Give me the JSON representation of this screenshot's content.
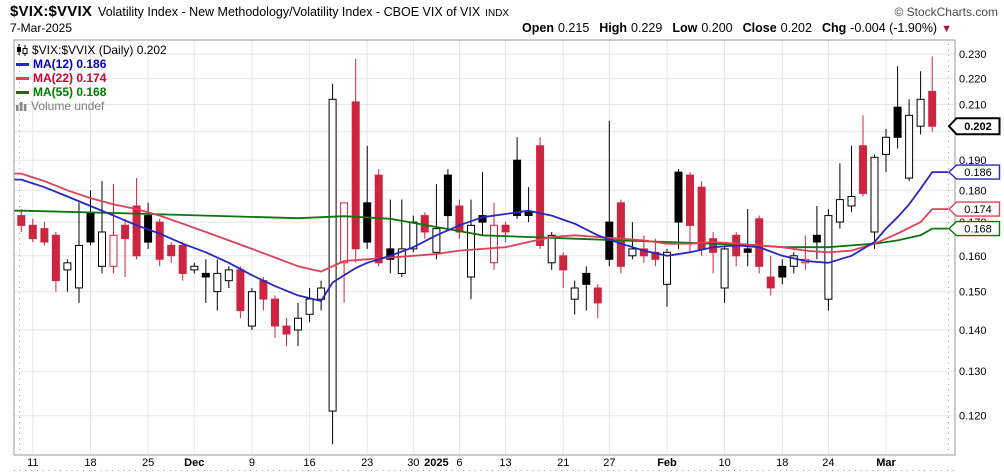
{
  "header": {
    "symbol": "$VIX:$VVIX",
    "description": "Volatility Index - New Methodology/Volatility Index - CBOE VIX of VIX",
    "exchange": "INDX",
    "copyright": "© StockCharts.com",
    "date": "7-Mar-2025",
    "quote": {
      "open_label": "Open",
      "open_value": "0.215",
      "high_label": "High",
      "high_value": "0.229",
      "low_label": "Low",
      "low_value": "0.200",
      "close_label": "Close",
      "close_value": "0.202",
      "chg_label": "Chg",
      "chg_value": "-0.004 (-1.90%)",
      "down_arrow": "▼"
    }
  },
  "legend": {
    "main": "$VIX:$VVIX (Daily) 0.202",
    "ma12": "MA(12) 0.186",
    "ma22": "MA(22) 0.174",
    "ma55": "MA(55) 0.168",
    "volume": "Volume undef"
  },
  "colors": {
    "candle_red": "#cd2440",
    "candle_black": "#000000",
    "ma12_blue": "#2727c3",
    "ma22_red": "#e04058",
    "ma55_green": "#0a750a",
    "grid": "#e5e5e5",
    "plot_border": "#999999",
    "axis_text": "#000000",
    "legend_ma12_text": "#0000cc",
    "legend_ma22_text": "#cc0033",
    "legend_ma55_text": "#007a00",
    "volume_text": "#7a7a7a",
    "copyright_text": "#4a4a4a",
    "chg_arrow": "#aa1b2d",
    "background": "#ffffff"
  },
  "chart_data": {
    "type": "candlestick",
    "title": "$VIX:$VVIX (Daily)",
    "period": "Daily",
    "last_close": 0.202,
    "log_scale": true,
    "ylim": [
      0.112,
      0.236
    ],
    "grid": true,
    "y_gridlines": [
      0.12,
      0.13,
      0.14,
      0.15,
      0.16,
      0.17,
      0.18,
      0.19,
      0.2,
      0.21,
      0.22,
      0.23
    ],
    "y_axis_labels": [
      {
        "text": "0.230",
        "v": 0.23
      },
      {
        "text": "0.220",
        "v": 0.22
      },
      {
        "text": "0.210",
        "v": 0.21
      },
      {
        "text": "0.190",
        "v": 0.19
      },
      {
        "text": "0.180",
        "v": 0.18
      },
      {
        "text": "0.170",
        "v": 0.17
      },
      {
        "text": "0.160",
        "v": 0.16
      },
      {
        "text": "0.150",
        "v": 0.15
      },
      {
        "text": "0.140",
        "v": 0.14
      },
      {
        "text": "0.130",
        "v": 0.13
      },
      {
        "text": "0.120",
        "v": 0.12
      }
    ],
    "price_bubbles": [
      {
        "text": "0.202",
        "v": 0.202,
        "color": "#000000",
        "bold": true
      },
      {
        "text": "0.186",
        "v": 0.186,
        "color": "#2727c3",
        "bold": false
      },
      {
        "text": "0.174",
        "v": 0.174,
        "color": "#e04058",
        "bold": false
      },
      {
        "text": "0.168",
        "v": 0.168,
        "color": "#0a750a",
        "bold": false
      }
    ],
    "x_ticks": [
      {
        "label": "11",
        "i": 1,
        "bold": false,
        "grid": true
      },
      {
        "label": "18",
        "i": 6,
        "bold": false,
        "grid": true
      },
      {
        "label": "25",
        "i": 11,
        "bold": false,
        "grid": true
      },
      {
        "label": "Dec",
        "i": 15,
        "bold": true,
        "grid": true
      },
      {
        "label": "9",
        "i": 20,
        "bold": false,
        "grid": true
      },
      {
        "label": "16",
        "i": 25,
        "bold": false,
        "grid": true
      },
      {
        "label": "23",
        "i": 30,
        "bold": false,
        "grid": true
      },
      {
        "label": "30",
        "i": 34,
        "bold": false,
        "grid": true
      },
      {
        "label": "2025",
        "i": 36,
        "bold": true,
        "grid": false
      },
      {
        "label": "6",
        "i": 38,
        "bold": false,
        "grid": true
      },
      {
        "label": "13",
        "i": 42,
        "bold": false,
        "grid": true
      },
      {
        "label": "21",
        "i": 47,
        "bold": false,
        "grid": true
      },
      {
        "label": "27",
        "i": 51,
        "bold": false,
        "grid": true
      },
      {
        "label": "Feb",
        "i": 56,
        "bold": true,
        "grid": true
      },
      {
        "label": "10",
        "i": 61,
        "bold": false,
        "grid": true
      },
      {
        "label": "18",
        "i": 66,
        "bold": false,
        "grid": true
      },
      {
        "label": "24",
        "i": 70,
        "bold": false,
        "grid": true
      },
      {
        "label": "Mar",
        "i": 75,
        "bold": true,
        "grid": true
      }
    ],
    "candle_styles": {
      "r": "red-filled",
      "b": "black-filled",
      "w": "white-hollow",
      "rh": "red-hollow"
    },
    "dates": [
      "Nov 8",
      "Nov 11",
      "Nov 12",
      "Nov 13",
      "Nov 14",
      "Nov 15",
      "Nov 18",
      "Nov 19",
      "Nov 20",
      "Nov 21",
      "Nov 22",
      "Nov 25",
      "Nov 26",
      "Nov 27",
      "Nov 29",
      "Dec 2",
      "Dec 3",
      "Dec 4",
      "Dec 5",
      "Dec 6",
      "Dec 9",
      "Dec 10",
      "Dec 11",
      "Dec 12",
      "Dec 13",
      "Dec 16",
      "Dec 17",
      "Dec 18",
      "Dec 19",
      "Dec 20",
      "Dec 23",
      "Dec 24",
      "Dec 26",
      "Dec 27",
      "Dec 30",
      "Dec 31",
      "Jan 2",
      "Jan 3",
      "Jan 6",
      "Jan 7",
      "Jan 8",
      "Jan 10",
      "Jan 13",
      "Jan 14",
      "Jan 15",
      "Jan 16",
      "Jan 17",
      "Jan 21",
      "Jan 22",
      "Jan 23",
      "Jan 24",
      "Jan 27",
      "Jan 28",
      "Jan 29",
      "Jan 30",
      "Jan 31",
      "Feb 3",
      "Feb 4",
      "Feb 5",
      "Feb 6",
      "Feb 7",
      "Feb 10",
      "Feb 11",
      "Feb 12",
      "Feb 13",
      "Feb 14",
      "Feb 18",
      "Feb 19",
      "Feb 20",
      "Feb 21",
      "Feb 24",
      "Feb 25",
      "Feb 26",
      "Feb 27",
      "Feb 28",
      "Mar 3",
      "Mar 4",
      "Mar 5",
      "Mar 6",
      "Mar 7"
    ],
    "candles": [
      [
        0.172,
        0.174,
        0.167,
        0.169,
        "r"
      ],
      [
        0.169,
        0.171,
        0.164,
        0.165,
        "r"
      ],
      [
        0.168,
        0.17,
        0.163,
        0.164,
        "r"
      ],
      [
        0.166,
        0.167,
        0.15,
        0.153,
        "r"
      ],
      [
        0.156,
        0.159,
        0.15,
        0.158,
        "w"
      ],
      [
        0.151,
        0.176,
        0.147,
        0.163,
        "w"
      ],
      [
        0.173,
        0.18,
        0.163,
        0.164,
        "b"
      ],
      [
        0.157,
        0.183,
        0.155,
        0.167,
        "w"
      ],
      [
        0.157,
        0.182,
        0.155,
        0.166,
        "rh"
      ],
      [
        0.169,
        0.171,
        0.154,
        0.165,
        "r"
      ],
      [
        0.175,
        0.184,
        0.159,
        0.16,
        "r"
      ],
      [
        0.172,
        0.176,
        0.162,
        0.164,
        "b"
      ],
      [
        0.17,
        0.171,
        0.157,
        0.159,
        "r"
      ],
      [
        0.163,
        0.164,
        0.158,
        0.16,
        "r"
      ],
      [
        0.163,
        0.164,
        0.153,
        0.155,
        "r"
      ],
      [
        0.156,
        0.158,
        0.155,
        0.157,
        "w"
      ],
      [
        0.155,
        0.159,
        0.147,
        0.154,
        "b"
      ],
      [
        0.15,
        0.159,
        0.145,
        0.155,
        "w"
      ],
      [
        0.153,
        0.157,
        0.151,
        0.156,
        "w"
      ],
      [
        0.156,
        0.157,
        0.143,
        0.145,
        "r"
      ],
      [
        0.141,
        0.151,
        0.14,
        0.15,
        "w"
      ],
      [
        0.153,
        0.154,
        0.145,
        0.148,
        "r"
      ],
      [
        0.148,
        0.149,
        0.138,
        0.141,
        "r"
      ],
      [
        0.141,
        0.143,
        0.136,
        0.139,
        "r"
      ],
      [
        0.14,
        0.147,
        0.136,
        0.143,
        "w"
      ],
      [
        0.144,
        0.151,
        0.142,
        0.148,
        "w"
      ],
      [
        0.148,
        0.153,
        0.145,
        0.151,
        "w"
      ],
      [
        0.121,
        0.218,
        0.114,
        0.212,
        "w"
      ],
      [
        0.158,
        0.176,
        0.147,
        0.176,
        "rh"
      ],
      [
        0.211,
        0.228,
        0.158,
        0.162,
        "r"
      ],
      [
        0.176,
        0.195,
        0.162,
        0.164,
        "b"
      ],
      [
        0.185,
        0.187,
        0.157,
        0.158,
        "r"
      ],
      [
        0.162,
        0.177,
        0.155,
        0.159,
        "b"
      ],
      [
        0.155,
        0.177,
        0.154,
        0.162,
        "w"
      ],
      [
        0.162,
        0.172,
        0.161,
        0.17,
        "w"
      ],
      [
        0.172,
        0.173,
        0.165,
        0.167,
        "r"
      ],
      [
        0.161,
        0.182,
        0.159,
        0.168,
        "w"
      ],
      [
        0.185,
        0.187,
        0.168,
        0.172,
        "b"
      ],
      [
        0.175,
        0.177,
        0.165,
        0.167,
        "r"
      ],
      [
        0.154,
        0.177,
        0.148,
        0.169,
        "w"
      ],
      [
        0.172,
        0.186,
        0.166,
        0.17,
        "b"
      ],
      [
        0.158,
        0.176,
        0.156,
        0.169,
        "rh"
      ],
      [
        0.169,
        0.17,
        0.164,
        0.167,
        "r"
      ],
      [
        0.19,
        0.198,
        0.171,
        0.172,
        "b"
      ],
      [
        0.173,
        0.181,
        0.17,
        0.172,
        "b"
      ],
      [
        0.195,
        0.198,
        0.162,
        0.163,
        "r"
      ],
      [
        0.158,
        0.167,
        0.156,
        0.166,
        "w"
      ],
      [
        0.16,
        0.161,
        0.151,
        0.156,
        "r"
      ],
      [
        0.148,
        0.153,
        0.144,
        0.151,
        "w"
      ],
      [
        0.155,
        0.157,
        0.145,
        0.152,
        "b"
      ],
      [
        0.151,
        0.152,
        0.143,
        0.147,
        "r"
      ],
      [
        0.17,
        0.204,
        0.157,
        0.159,
        "b"
      ],
      [
        0.176,
        0.177,
        0.155,
        0.157,
        "r"
      ],
      [
        0.16,
        0.17,
        0.159,
        0.162,
        "w"
      ],
      [
        0.162,
        0.166,
        0.158,
        0.16,
        "r"
      ],
      [
        0.161,
        0.165,
        0.157,
        0.159,
        "r"
      ],
      [
        0.152,
        0.162,
        0.146,
        0.161,
        "w"
      ],
      [
        0.186,
        0.187,
        0.162,
        0.17,
        "b"
      ],
      [
        0.185,
        0.186,
        0.161,
        0.169,
        "r"
      ],
      [
        0.181,
        0.183,
        0.16,
        0.162,
        "r"
      ],
      [
        0.165,
        0.167,
        0.155,
        0.161,
        "r"
      ],
      [
        0.151,
        0.163,
        0.147,
        0.162,
        "w"
      ],
      [
        0.166,
        0.167,
        0.157,
        0.16,
        "r"
      ],
      [
        0.162,
        0.174,
        0.157,
        0.161,
        "b"
      ],
      [
        0.171,
        0.172,
        0.155,
        0.157,
        "r"
      ],
      [
        0.154,
        0.16,
        0.149,
        0.151,
        "r"
      ],
      [
        0.157,
        0.159,
        0.152,
        0.154,
        "b"
      ],
      [
        0.157,
        0.161,
        0.155,
        0.16,
        "w"
      ],
      [
        0.158,
        0.166,
        0.156,
        0.159,
        "rh"
      ],
      [
        0.166,
        0.175,
        0.159,
        0.164,
        "b"
      ],
      [
        0.148,
        0.174,
        0.145,
        0.172,
        "w"
      ],
      [
        0.17,
        0.189,
        0.168,
        0.177,
        "w"
      ],
      [
        0.175,
        0.195,
        0.173,
        0.178,
        "w"
      ],
      [
        0.195,
        0.206,
        0.178,
        0.179,
        "r"
      ],
      [
        0.167,
        0.192,
        0.162,
        0.191,
        "w"
      ],
      [
        0.192,
        0.201,
        0.186,
        0.198,
        "w"
      ],
      [
        0.209,
        0.225,
        0.194,
        0.198,
        "b"
      ],
      [
        0.184,
        0.212,
        0.183,
        0.206,
        "w"
      ],
      [
        0.202,
        0.223,
        0.199,
        0.212,
        "w"
      ],
      [
        0.215,
        0.229,
        0.2,
        0.202,
        "r"
      ]
    ],
    "ma": [
      {
        "name": "MA(12)",
        "period": 12,
        "color": "#2727c3",
        "last": 0.186,
        "points": [
          [
            0,
            0.1835
          ],
          [
            2,
            0.181
          ],
          [
            4,
            0.178
          ],
          [
            6,
            0.175
          ],
          [
            8,
            0.172
          ],
          [
            10,
            0.169
          ],
          [
            12,
            0.1665
          ],
          [
            14,
            0.1635
          ],
          [
            16,
            0.161
          ],
          [
            18,
            0.158
          ],
          [
            20,
            0.1545
          ],
          [
            22,
            0.1515
          ],
          [
            24,
            0.149
          ],
          [
            26,
            0.1475
          ],
          [
            27,
            0.1525
          ],
          [
            28,
            0.1545
          ],
          [
            29,
            0.1565
          ],
          [
            30,
            0.158
          ],
          [
            32,
            0.16
          ],
          [
            34,
            0.1625
          ],
          [
            36,
            0.166
          ],
          [
            38,
            0.169
          ],
          [
            40,
            0.1715
          ],
          [
            42,
            0.1725
          ],
          [
            44,
            0.1735
          ],
          [
            46,
            0.172
          ],
          [
            48,
            0.1695
          ],
          [
            50,
            0.166
          ],
          [
            52,
            0.1635
          ],
          [
            54,
            0.1615
          ],
          [
            56,
            0.16
          ],
          [
            58,
            0.161
          ],
          [
            60,
            0.1625
          ],
          [
            62,
            0.163
          ],
          [
            64,
            0.1625
          ],
          [
            66,
            0.16
          ],
          [
            68,
            0.1585
          ],
          [
            70,
            0.158
          ],
          [
            72,
            0.16
          ],
          [
            74,
            0.164
          ],
          [
            75,
            0.168
          ],
          [
            76,
            0.1715
          ],
          [
            77,
            0.1755
          ],
          [
            78,
            0.1805
          ],
          [
            79,
            0.186
          ]
        ]
      },
      {
        "name": "MA(22)",
        "period": 22,
        "color": "#e04058",
        "last": 0.174,
        "points": [
          [
            0,
            0.1855
          ],
          [
            2,
            0.183
          ],
          [
            4,
            0.18
          ],
          [
            6,
            0.1775
          ],
          [
            8,
            0.1755
          ],
          [
            10,
            0.174
          ],
          [
            12,
            0.172
          ],
          [
            14,
            0.1695
          ],
          [
            16,
            0.167
          ],
          [
            18,
            0.1645
          ],
          [
            20,
            0.162
          ],
          [
            22,
            0.1595
          ],
          [
            24,
            0.157
          ],
          [
            26,
            0.1555
          ],
          [
            28,
            0.1585
          ],
          [
            30,
            0.159
          ],
          [
            32,
            0.1595
          ],
          [
            34,
            0.16
          ],
          [
            36,
            0.1605
          ],
          [
            38,
            0.1615
          ],
          [
            40,
            0.162
          ],
          [
            42,
            0.1625
          ],
          [
            44,
            0.164
          ],
          [
            46,
            0.1655
          ],
          [
            48,
            0.166
          ],
          [
            50,
            0.1655
          ],
          [
            52,
            0.165
          ],
          [
            54,
            0.1645
          ],
          [
            56,
            0.1635
          ],
          [
            58,
            0.1635
          ],
          [
            60,
            0.164
          ],
          [
            62,
            0.1635
          ],
          [
            64,
            0.163
          ],
          [
            66,
            0.1625
          ],
          [
            68,
            0.1615
          ],
          [
            70,
            0.161
          ],
          [
            72,
            0.1615
          ],
          [
            74,
            0.1635
          ],
          [
            76,
            0.1665
          ],
          [
            78,
            0.17
          ],
          [
            79,
            0.174
          ]
        ]
      },
      {
        "name": "MA(55)",
        "period": 55,
        "color": "#0a750a",
        "last": 0.168,
        "points": [
          [
            0,
            0.1735
          ],
          [
            8,
            0.1728
          ],
          [
            16,
            0.172
          ],
          [
            24,
            0.1712
          ],
          [
            28,
            0.1718
          ],
          [
            32,
            0.171
          ],
          [
            36,
            0.1685
          ],
          [
            40,
            0.166
          ],
          [
            44,
            0.1655
          ],
          [
            48,
            0.165
          ],
          [
            52,
            0.1645
          ],
          [
            56,
            0.164
          ],
          [
            60,
            0.1635
          ],
          [
            64,
            0.163
          ],
          [
            66,
            0.1625
          ],
          [
            70,
            0.1625
          ],
          [
            72,
            0.163
          ],
          [
            74,
            0.1635
          ],
          [
            76,
            0.1645
          ],
          [
            78,
            0.166
          ],
          [
            79,
            0.168
          ]
        ]
      }
    ]
  }
}
